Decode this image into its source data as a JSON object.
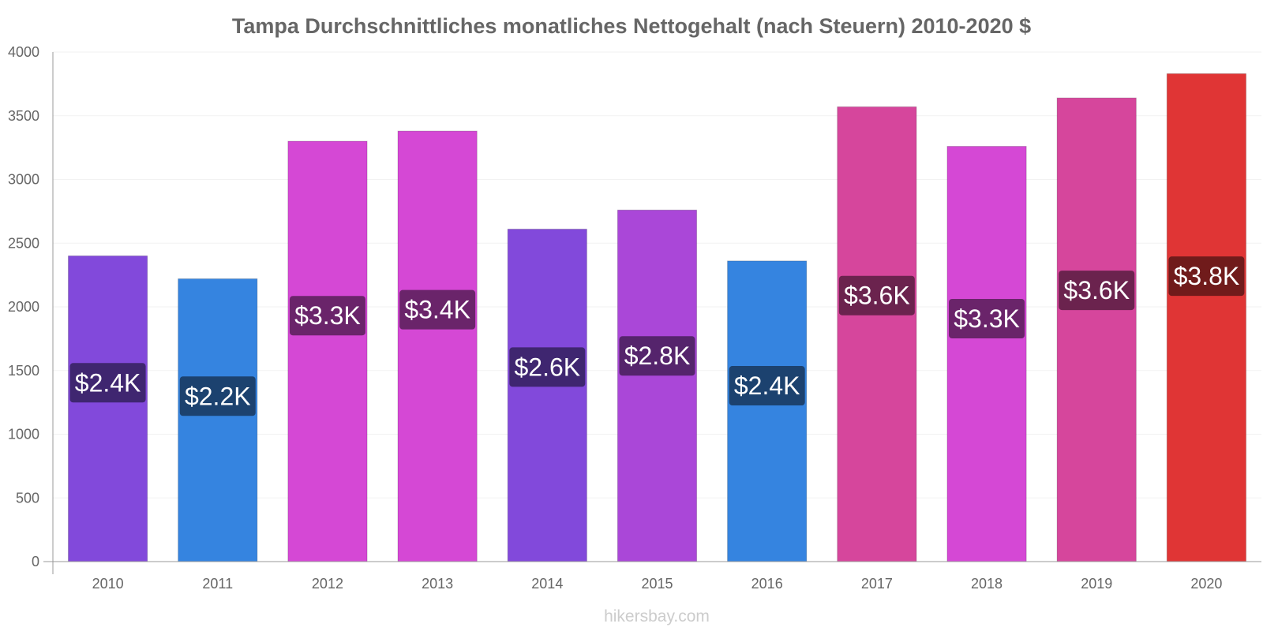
{
  "chart_data": {
    "type": "bar",
    "title": "Tampa Durchschnittliches monatliches Nettogehalt (nach Steuern) 2010-2020 $",
    "xlabel": "",
    "ylabel": "",
    "ylim": [
      0,
      4000
    ],
    "yticks": [
      0,
      500,
      1000,
      1500,
      2000,
      2500,
      3000,
      3500,
      4000
    ],
    "categories": [
      "2010",
      "2011",
      "2012",
      "2013",
      "2014",
      "2015",
      "2016",
      "2017",
      "2018",
      "2019",
      "2020"
    ],
    "values": [
      2400,
      2220,
      3300,
      3380,
      2610,
      2760,
      2360,
      3570,
      3260,
      3640,
      3830
    ],
    "labels": [
      "$2.4K",
      "$2.2K",
      "$3.3K",
      "$3.4K",
      "$2.6K",
      "$2.8K",
      "$2.4K",
      "$3.6K",
      "$3.3K",
      "$3.6K",
      "$3.8K"
    ],
    "bar_colors": [
      "#8249db",
      "#3584e0",
      "#d548d5",
      "#d548d5",
      "#8249db",
      "#aa47d8",
      "#3584e0",
      "#d6469c",
      "#d548d5",
      "#d6469c",
      "#e03535"
    ],
    "label_bg_colors": [
      "#3f2670",
      "#1c426f",
      "#6a246a",
      "#6a246a",
      "#3f2670",
      "#55246c",
      "#1c426f",
      "#6b234e",
      "#6a246a",
      "#6b234e",
      "#701b1b"
    ],
    "grid": true,
    "legend": "none"
  },
  "watermark": "hikersbay.com"
}
